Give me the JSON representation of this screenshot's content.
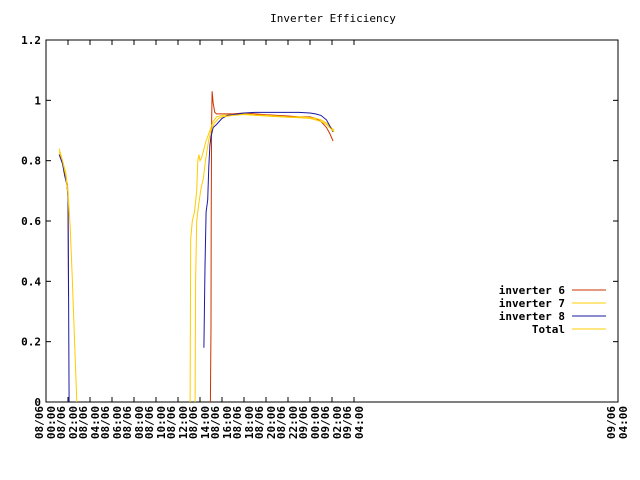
{
  "chart_data": {
    "type": "line",
    "title": "Inverter Efficiency",
    "xlabel": "",
    "ylabel": "",
    "ylim": [
      0,
      1.2
    ],
    "y_ticks": [
      "0",
      "0.2",
      "0.4",
      "0.6",
      "0.8",
      "1",
      "1.2"
    ],
    "xlim_hours": [
      0,
      52
    ],
    "x_ticks": [
      "08/06 02:00",
      "08/06 04:00",
      "08/06 06:00",
      "08/06 08:00",
      "08/06 10:00",
      "08/06 12:00",
      "08/06 14:00",
      "08/06 16:00",
      "08/06 18:00",
      "08/06 20:00",
      "08/06 22:00",
      "09/06 00:00",
      "09/06 02:00",
      "09/06 04:00"
    ],
    "x_tick_hours": [
      2,
      4,
      6,
      8,
      10,
      12,
      14,
      16,
      18,
      20,
      22,
      24,
      26,
      28
    ],
    "x_edge_labels": [
      "08/06 00:00",
      "09/06 04:00"
    ],
    "legend_position": "right",
    "grid": false,
    "series": [
      {
        "name": "inverter 6",
        "color": "#cc3300",
        "segments": [
          [
            [
              1.2,
              0.82
            ],
            [
              1.45,
              0.8
            ],
            [
              1.7,
              0.76
            ],
            [
              1.95,
              0.72
            ],
            [
              2.0,
              0.67
            ],
            [
              2.05,
              0.35
            ]
          ],
          [
            [
              14.95,
              0
            ],
            [
              15.0,
              0.25
            ],
            [
              15.02,
              0.6
            ],
            [
              15.05,
              0.92
            ],
            [
              15.1,
              1.03
            ],
            [
              15.2,
              0.99
            ],
            [
              15.35,
              0.96
            ],
            [
              15.5,
              0.955
            ],
            [
              16,
              0.955
            ],
            [
              17,
              0.955
            ],
            [
              18,
              0.958
            ],
            [
              19,
              0.955
            ],
            [
              20,
              0.952
            ],
            [
              21,
              0.95
            ],
            [
              22,
              0.948
            ],
            [
              23,
              0.945
            ],
            [
              24,
              0.945
            ],
            [
              24.5,
              0.94
            ],
            [
              25,
              0.93
            ],
            [
              25.5,
              0.91
            ],
            [
              25.8,
              0.89
            ],
            [
              26.1,
              0.865
            ]
          ]
        ]
      },
      {
        "name": "inverter 7",
        "color": "#ffcc00",
        "segments": [
          [
            [
              1.2,
              0.84
            ],
            [
              1.5,
              0.8
            ],
            [
              1.8,
              0.76
            ],
            [
              2.0,
              0.7
            ],
            [
              2.2,
              0.58
            ],
            [
              2.4,
              0.4
            ],
            [
              2.6,
              0.2
            ],
            [
              2.8,
              0
            ]
          ],
          [
            [
              13.1,
              0
            ],
            [
              13.15,
              0.54
            ],
            [
              13.3,
              0.6
            ],
            [
              13.5,
              0.63
            ],
            [
              13.7,
              0.7
            ],
            [
              13.8,
              0.8
            ],
            [
              13.9,
              0.82
            ],
            [
              14.0,
              0.8
            ],
            [
              14.15,
              0.81
            ],
            [
              14.3,
              0.83
            ],
            [
              14.5,
              0.86
            ],
            [
              14.8,
              0.89
            ],
            [
              15.0,
              0.91
            ],
            [
              15.2,
              0.93
            ],
            [
              15.5,
              0.945
            ],
            [
              16,
              0.95
            ],
            [
              17,
              0.952
            ],
            [
              18,
              0.955
            ],
            [
              19,
              0.952
            ],
            [
              20,
              0.95
            ],
            [
              21,
              0.948
            ],
            [
              22,
              0.945
            ],
            [
              23,
              0.945
            ],
            [
              24,
              0.943
            ],
            [
              24.5,
              0.94
            ],
            [
              25,
              0.935
            ],
            [
              25.5,
              0.925
            ],
            [
              26.2,
              0.9
            ]
          ]
        ]
      },
      {
        "name": "inverter 8",
        "color": "#1a1aa6",
        "segments": [
          [
            [
              1.2,
              0.82
            ],
            [
              1.5,
              0.79
            ],
            [
              1.7,
              0.75
            ],
            [
              1.9,
              0.72
            ],
            [
              2.0,
              0.68
            ],
            [
              2.05,
              0.4
            ],
            [
              2.1,
              0
            ]
          ],
          [
            [
              14.35,
              0.18
            ],
            [
              14.45,
              0.45
            ],
            [
              14.55,
              0.63
            ],
            [
              14.7,
              0.67
            ],
            [
              14.8,
              0.78
            ],
            [
              14.9,
              0.85
            ],
            [
              15.0,
              0.88
            ],
            [
              15.2,
              0.91
            ],
            [
              15.5,
              0.92
            ],
            [
              16,
              0.94
            ],
            [
              16.5,
              0.95
            ],
            [
              17,
              0.952
            ],
            [
              18,
              0.958
            ],
            [
              19,
              0.96
            ],
            [
              20,
              0.96
            ],
            [
              21,
              0.96
            ],
            [
              22,
              0.96
            ],
            [
              23,
              0.96
            ],
            [
              24,
              0.958
            ],
            [
              24.5,
              0.955
            ],
            [
              25,
              0.95
            ],
            [
              25.5,
              0.935
            ],
            [
              25.8,
              0.915
            ],
            [
              26.1,
              0.895
            ]
          ]
        ]
      },
      {
        "name": "Total",
        "color": "#ffcc00",
        "segments": [
          [
            [
              1.2,
              0.83
            ],
            [
              1.5,
              0.8
            ],
            [
              1.8,
              0.75
            ],
            [
              2.0,
              0.69
            ],
            [
              2.1,
              0.62
            ]
          ],
          [
            [
              13.55,
              0
            ],
            [
              13.6,
              0.4
            ],
            [
              13.7,
              0.6
            ],
            [
              13.9,
              0.66
            ],
            [
              14.1,
              0.71
            ],
            [
              14.3,
              0.74
            ],
            [
              14.5,
              0.8
            ],
            [
              14.8,
              0.87
            ],
            [
              15.0,
              0.9
            ],
            [
              15.3,
              0.925
            ],
            [
              15.7,
              0.94
            ],
            [
              16,
              0.945
            ],
            [
              17,
              0.95
            ],
            [
              18,
              0.953
            ],
            [
              19,
              0.95
            ],
            [
              20,
              0.948
            ],
            [
              21,
              0.946
            ],
            [
              22,
              0.944
            ],
            [
              23,
              0.942
            ],
            [
              24,
              0.94
            ],
            [
              24.5,
              0.935
            ],
            [
              25,
              0.93
            ],
            [
              25.5,
              0.92
            ],
            [
              26.2,
              0.895
            ]
          ]
        ]
      }
    ]
  }
}
